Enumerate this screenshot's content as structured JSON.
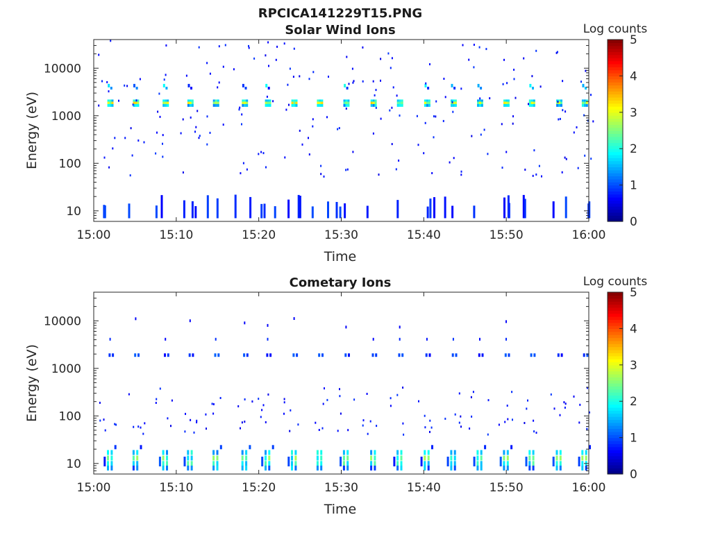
{
  "figure": {
    "title": "RPCICA141229T15.PNG"
  },
  "chart_data": [
    {
      "type": "heatmap",
      "title": "Solar Wind Ions",
      "xlabel": "Time",
      "ylabel": "Energy (eV)",
      "xlim": [
        "15:00",
        "16:00"
      ],
      "xticks": [
        "15:00",
        "15:10",
        "15:20",
        "15:30",
        "15:40",
        "15:50",
        "16:00"
      ],
      "yscale": "log",
      "ylim": [
        6,
        40000
      ],
      "yticks": [
        "10",
        "100",
        "1000",
        "10000"
      ],
      "colorbar": {
        "label": "Log counts",
        "min": 0,
        "max": 5,
        "ticks": [
          "0",
          "1",
          "2",
          "3",
          "4",
          "5"
        ],
        "colormap": "jet"
      },
      "scan_times_min": [
        1.9,
        5.0,
        8.6,
        11.6,
        14.7,
        18.2,
        21.0,
        24.2,
        27.3,
        30.5,
        33.8,
        37.0,
        40.3,
        43.5,
        46.7,
        49.9,
        53.0,
        56.3,
        59.4
      ],
      "features": [
        {
          "name": "solar wind core",
          "energy_eV": 1900,
          "log_counts": [
            2.0,
            3.5
          ]
        },
        {
          "name": "solar wind upper shoulder",
          "energy_eV": 4300,
          "log_counts": [
            0.5,
            2.0
          ]
        },
        {
          "name": "low-energy band",
          "energy_eV": [
            7,
            22
          ],
          "log_counts": [
            0.5,
            1.0
          ]
        },
        {
          "name": "sparse background",
          "energy_eV": [
            50,
            40000
          ],
          "log_counts": [
            0.5,
            1.0
          ]
        }
      ]
    },
    {
      "type": "heatmap",
      "title": "Cometary Ions",
      "xlabel": "Time",
      "ylabel": "Energy (eV)",
      "xlim": [
        "15:00",
        "16:00"
      ],
      "xticks": [
        "15:00",
        "15:10",
        "15:20",
        "15:30",
        "15:40",
        "15:50",
        "16:00"
      ],
      "yscale": "log",
      "ylim": [
        6,
        40000
      ],
      "yticks": [
        "10",
        "100",
        "1000",
        "10000"
      ],
      "colorbar": {
        "label": "Log counts",
        "min": 0,
        "max": 5,
        "ticks": [
          "0",
          "1",
          "2",
          "3",
          "4",
          "5"
        ],
        "colormap": "jet"
      },
      "scan_times_min": [
        1.9,
        5.0,
        8.6,
        11.6,
        14.7,
        18.2,
        21.0,
        24.2,
        27.3,
        30.5,
        33.8,
        37.0,
        40.3,
        43.5,
        46.7,
        49.9,
        53.0,
        56.3,
        59.4
      ],
      "features": [
        {
          "name": "cometary low-energy band",
          "energy_eV": [
            6,
            22
          ],
          "log_counts": [
            0.5,
            2.8
          ]
        },
        {
          "name": "leaked solar wind",
          "energy_eV": 1900,
          "log_counts": [
            0.5,
            1.0
          ]
        },
        {
          "name": "sparse background",
          "energy_eV": [
            50,
            12000
          ],
          "log_counts": [
            0.5,
            1.0
          ]
        }
      ]
    }
  ]
}
